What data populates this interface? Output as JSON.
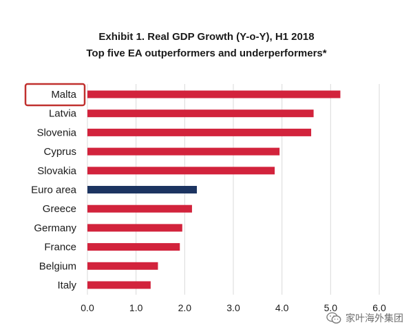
{
  "chart_data": {
    "type": "bar",
    "orientation": "horizontal",
    "title": "Exhibit 1. Real GDP Growth (Y-o-Y), H1 2018",
    "subtitle": "Top five EA outperformers and underperformers*",
    "categories": [
      "Malta",
      "Latvia",
      "Slovenia",
      "Cyprus",
      "Slovakia",
      "Euro area",
      "Greece",
      "Germany",
      "France",
      "Belgium",
      "Italy"
    ],
    "values": [
      5.2,
      4.65,
      4.6,
      3.95,
      3.85,
      2.25,
      2.15,
      1.95,
      1.9,
      1.45,
      1.3
    ],
    "highlighted_category": "Malta",
    "reference_category": "Euro area",
    "xlim": [
      0,
      6
    ],
    "xticks": [
      "0.0",
      "1.0",
      "2.0",
      "3.0",
      "4.0",
      "5.0",
      "6.0"
    ],
    "grid": "vertical",
    "xlabel": "",
    "ylabel": ""
  },
  "colors": {
    "bar": "#d2233c",
    "reference_bar": "#1c3461",
    "grid": "#d9d9d9",
    "highlight_box": "#c0302e"
  },
  "watermark": {
    "text": "家叶海外集团",
    "icon": "wechat-icon"
  }
}
